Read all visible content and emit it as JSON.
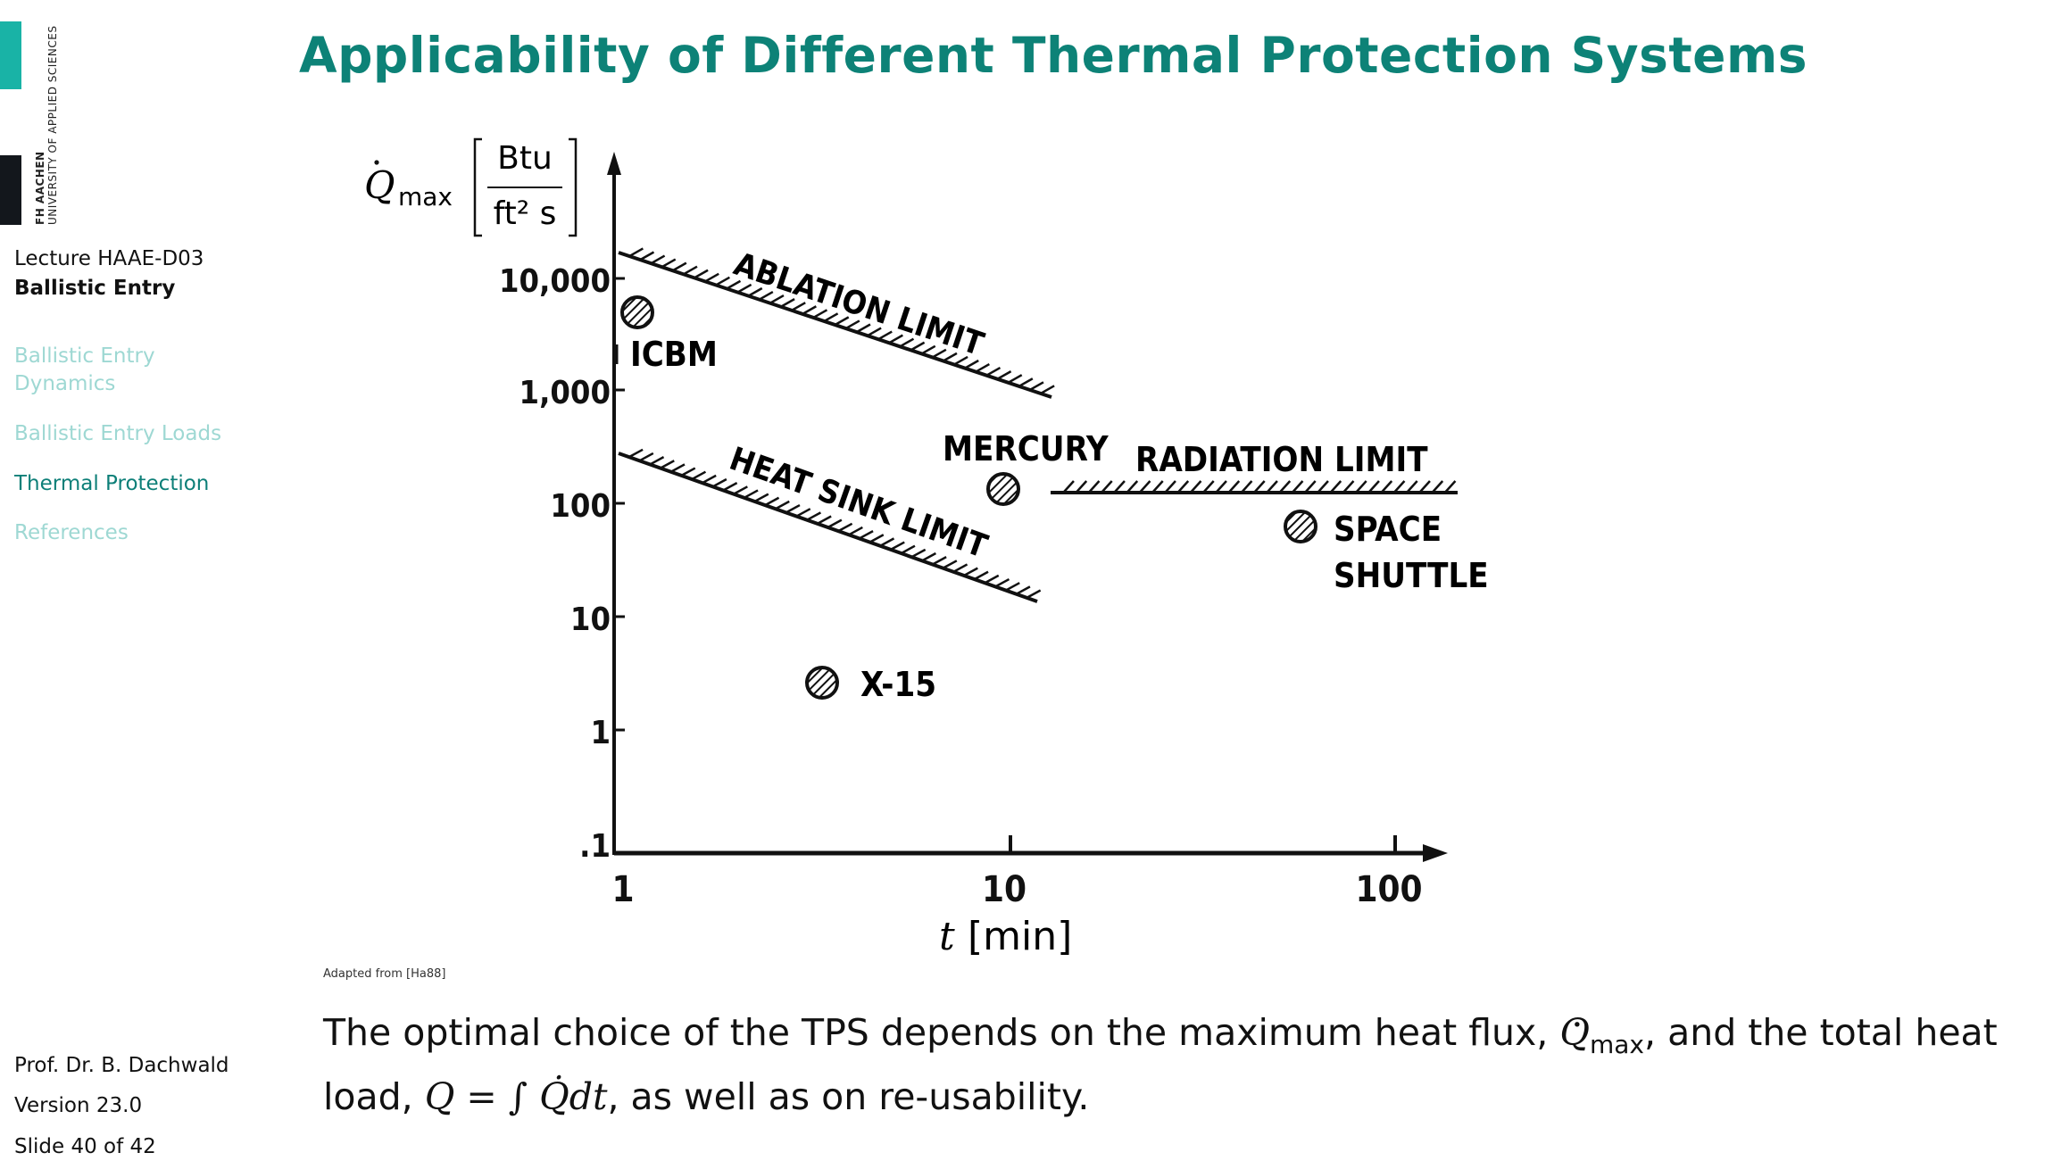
{
  "sidebar": {
    "logo": {
      "line1": "FH AACHEN",
      "line2": "UNIVERSITY OF APPLIED SCIENCES"
    },
    "lecture": "Lecture HAAE-D03",
    "subtitle": "Ballistic Entry",
    "nav": [
      {
        "label": "Ballistic Entry Dynamics",
        "active": false
      },
      {
        "label": "Ballistic Entry Loads",
        "active": false
      },
      {
        "label": "Thermal Protection",
        "active": true
      },
      {
        "label": "References",
        "active": false
      }
    ],
    "author": "Prof. Dr. B. Dachwald",
    "version": "Version 23.0",
    "slide": "Slide 40 of 42"
  },
  "title": "Applicability of Different Thermal Protection Systems",
  "diagram": {
    "y_axis_symbol": "Q",
    "y_axis_sub": "max",
    "y_unit_num": "Btu",
    "y_unit_den": "ft² s",
    "y_ticks": [
      "10,000",
      "1,000",
      "100",
      "10",
      "1",
      ".1"
    ],
    "x_ticks": [
      "1",
      "10",
      "100"
    ],
    "x_axis_symbol": "t",
    "x_axis_unit": "[min]",
    "limits": {
      "ablation": "ABLATION LIMIT",
      "heat_sink": "HEAT SINK LIMIT",
      "radiation": "RADIATION LIMIT"
    },
    "points": {
      "icbm": "ICBM",
      "mercury": "MERCURY",
      "space_shuttle_1": "SPACE",
      "space_shuttle_2": "SHUTTLE",
      "x15": "X-15"
    }
  },
  "caption": "Adapted from [Ha88]",
  "body": {
    "part1": "The optimal choice of the TPS depends on the maximum heat flux, ",
    "qmax": "Q",
    "qmax_sub": "max",
    "part2": ", and the total heat load, ",
    "formula": "Q = ∫ Q̇dt",
    "part3": ", as well as on re-usability."
  }
}
